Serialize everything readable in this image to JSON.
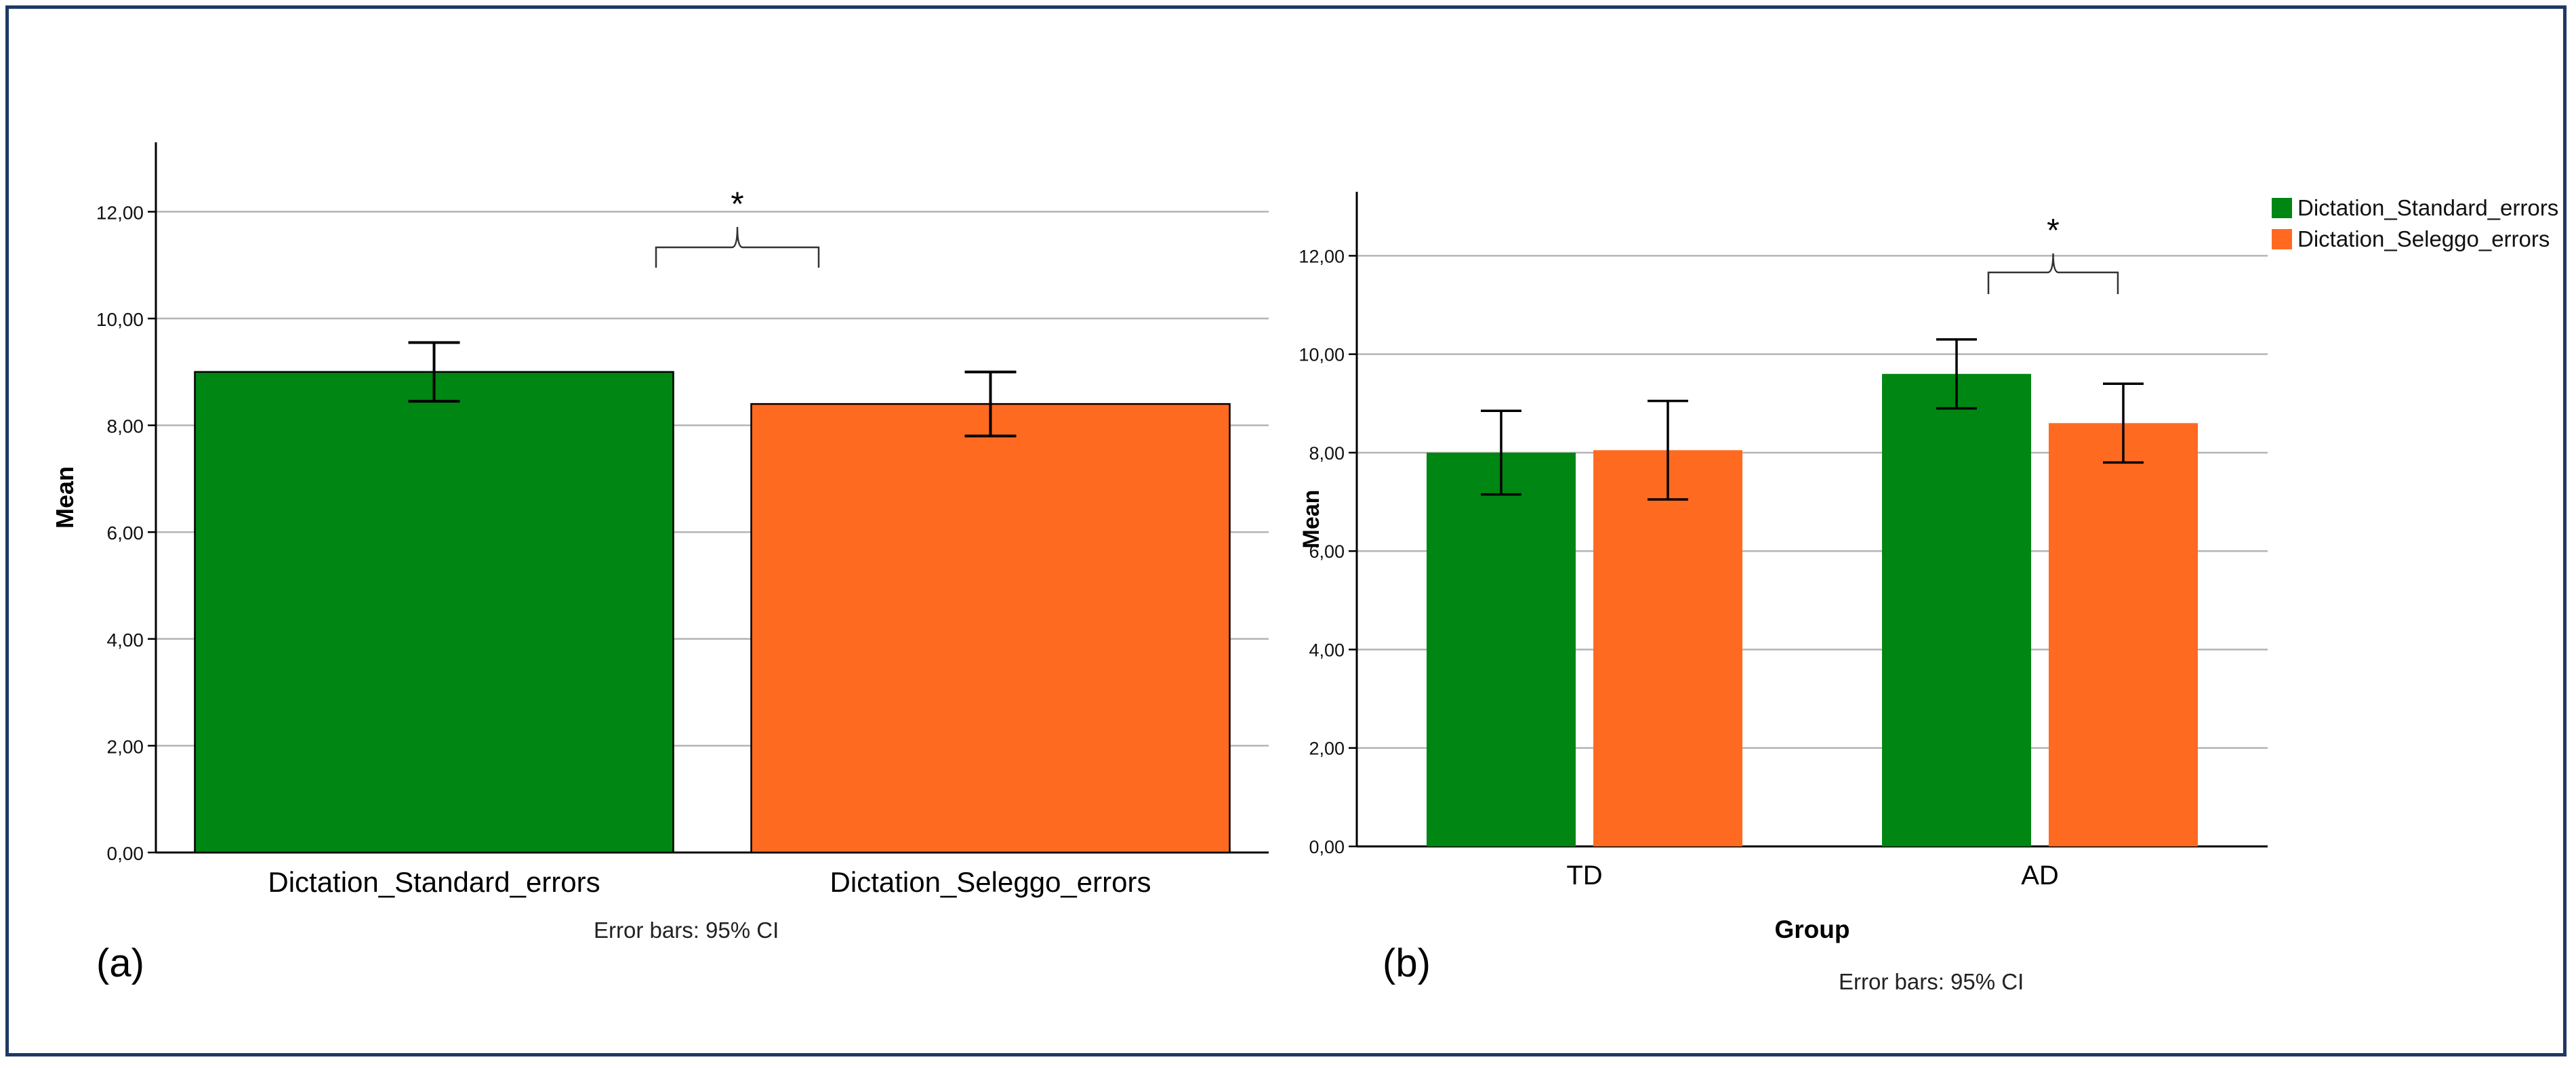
{
  "colors": {
    "standard": "#008612",
    "seleggo": "#ff6a21",
    "frame": "#203864",
    "axis": "#000000",
    "grid": "#b4b4b4"
  },
  "panel_a": {
    "label": "(a)",
    "footnote": "Error bars: 95% CI",
    "significance": "*"
  },
  "panel_b": {
    "label": "(b)",
    "footnote": "Error bars: 95% CI",
    "significance": "*",
    "legend": [
      "Dictation_Standard_errors",
      "Dictation_Seleggo_errors"
    ]
  },
  "chart_data": [
    {
      "type": "bar",
      "categories": [
        "Dictation_Standard_errors",
        "Dictation_Seleggo_errors"
      ],
      "values": [
        9.0,
        8.4
      ],
      "ci_low": [
        8.45,
        7.8
      ],
      "ci_high": [
        9.55,
        9.0
      ],
      "ylabel": "Mean",
      "xlabel": "",
      "ylim": [
        0,
        13.3
      ],
      "yticks": [
        0,
        2,
        4,
        6,
        8,
        10,
        12
      ],
      "ytick_labels": [
        "0,00",
        "2,00",
        "4,00",
        "6,00",
        "8,00",
        "10,00",
        "12,00"
      ],
      "annotation": "*"
    },
    {
      "type": "bar",
      "categories": [
        "TD",
        "AD"
      ],
      "series": [
        {
          "name": "Dictation_Standard_errors",
          "values": [
            8.0,
            9.6
          ],
          "ci_low": [
            7.15,
            8.9
          ],
          "ci_high": [
            8.85,
            10.3
          ]
        },
        {
          "name": "Dictation_Seleggo_errors",
          "values": [
            8.05,
            8.6
          ],
          "ci_low": [
            7.05,
            7.8
          ],
          "ci_high": [
            9.05,
            9.4
          ]
        }
      ],
      "xlabel": "Group",
      "ylabel": "Mean",
      "ylim": [
        0,
        13.3
      ],
      "yticks": [
        0,
        2,
        4,
        6,
        8,
        10,
        12
      ],
      "ytick_labels": [
        "0,00",
        "2,00",
        "4,00",
        "6,00",
        "8,00",
        "10,00",
        "12,00"
      ],
      "legend_position": "top-right",
      "annotation": "*"
    }
  ]
}
